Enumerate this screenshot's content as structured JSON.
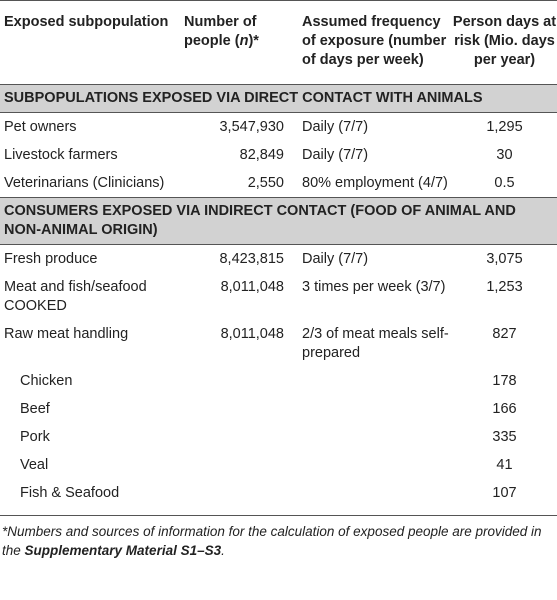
{
  "header": {
    "col1": "Exposed subpopulation",
    "col2_a": "Number of people (",
    "col2_n": "n",
    "col2_b": ")*",
    "col3": "Assumed frequency of exposure (number of days per week)",
    "col4": "Person days at risk (Mio. days per year)"
  },
  "section1": {
    "title": "SUBPOPULATIONS EXPOSED VIA DIRECT CONTACT WITH ANIMALS",
    "rows": [
      {
        "name": "Pet owners",
        "people": "3,547,930",
        "freq": "Daily (7/7)",
        "days": "1,295"
      },
      {
        "name": "Livestock farmers",
        "people": "82,849",
        "freq": "Daily (7/7)",
        "days": "30"
      },
      {
        "name": "Veterinarians (Clinicians)",
        "people": "2,550",
        "freq": "80% employment (4/7)",
        "days": "0.5"
      }
    ]
  },
  "section2": {
    "title": "CONSUMERS EXPOSED VIA INDIRECT CONTACT (FOOD OF ANIMAL AND NON-ANIMAL ORIGIN)",
    "rows": [
      {
        "name": "Fresh produce",
        "people": "8,423,815",
        "freq": "Daily (7/7)",
        "days": "3,075"
      },
      {
        "name": "Meat and fish/seafood COOKED",
        "people": "8,011,048",
        "freq": "3 times per week (3/7)",
        "days": "1,253"
      },
      {
        "name": "Raw meat handling",
        "people": "8,011,048",
        "freq": "2/3 of meat meals self-prepared",
        "days": "827"
      }
    ],
    "subrows": [
      {
        "name": "Chicken",
        "days": "178"
      },
      {
        "name": "Beef",
        "days": "166"
      },
      {
        "name": "Pork",
        "days": "335"
      },
      {
        "name": "Veal",
        "days": "41"
      },
      {
        "name": "Fish & Seafood",
        "days": "107"
      }
    ]
  },
  "footnote": {
    "text": "*Numbers and sources of information for the calculation of exposed people are provided in the ",
    "bold": "Supplementary Material S1–S3",
    "end": "."
  }
}
